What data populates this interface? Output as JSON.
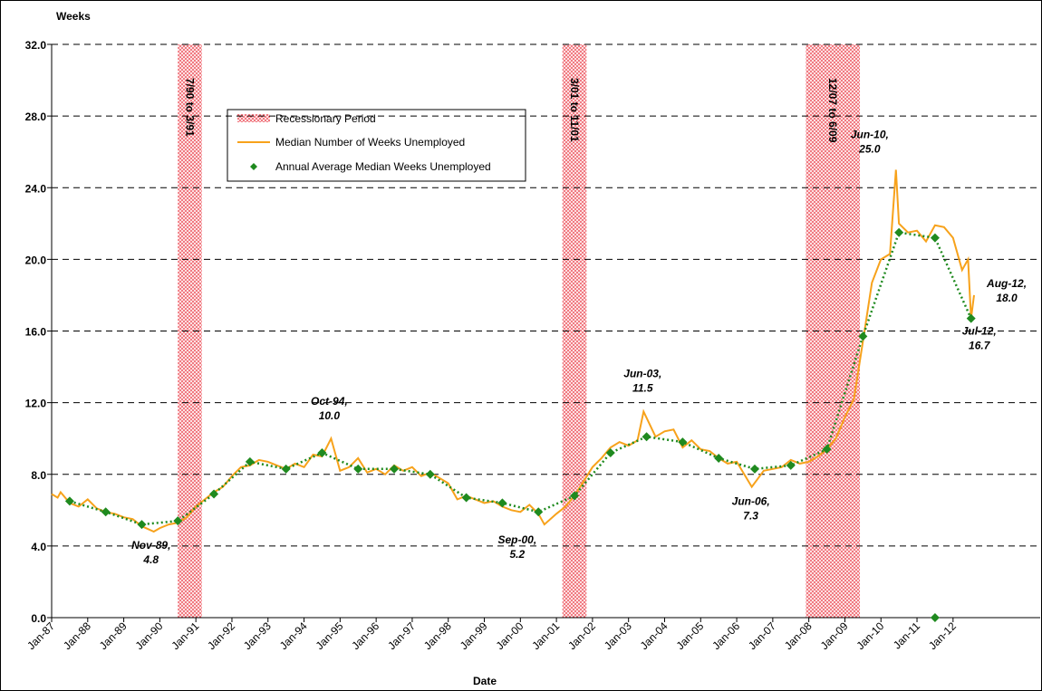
{
  "chart_data": {
    "type": "line",
    "y_axis_label": "Weeks",
    "x_axis_label": "Date",
    "ylim": [
      0,
      32
    ],
    "yticks": [
      {
        "value": 0,
        "label": "0.0"
      },
      {
        "value": 4,
        "label": "4.0"
      },
      {
        "value": 8,
        "label": "8.0"
      },
      {
        "value": 12,
        "label": "12.0"
      },
      {
        "value": 16,
        "label": "16.0"
      },
      {
        "value": 20,
        "label": "20.0"
      },
      {
        "value": 24,
        "label": "24.0"
      },
      {
        "value": 28,
        "label": "28.0"
      },
      {
        "value": 32,
        "label": "32.0"
      }
    ],
    "xlim": [
      "Jan-87",
      "Jun-14"
    ],
    "xticks": [
      "Jan-87",
      "Jan-88",
      "Jan-89",
      "Jan-90",
      "Jan-91",
      "Jan-92",
      "Jan-93",
      "Jan-94",
      "Jan-95",
      "Jan-96",
      "Jan-97",
      "Jan-98",
      "Jan-99",
      "Jan-00",
      "Jan-01",
      "Jan-02",
      "Jan-03",
      "Jan-04",
      "Jan-05",
      "Jan-06",
      "Jan-07",
      "Jan-08",
      "Jan-09",
      "Jan-10",
      "Jan-11",
      "Jan-12"
    ],
    "grid": true,
    "recessions": {
      "name": "Recessionary Period",
      "color": "#e8323c",
      "bands": [
        {
          "start": "Jul-90",
          "end": "Mar-91",
          "label": "7/90 to 3/91"
        },
        {
          "start": "Mar-01",
          "end": "Nov-01",
          "label": "3/01 to 11/01"
        },
        {
          "start": "Dec-07",
          "end": "Jun-09",
          "label": "12/07 to 6/09"
        }
      ]
    },
    "series": [
      {
        "name": "Median Number of Weeks Unemployed",
        "color": "#f7a21b",
        "x": [
          "Jan-87",
          "Mar-87",
          "Apr-87",
          "Jul-87",
          "Oct-87",
          "Jan-88",
          "Apr-88",
          "Jul-88",
          "Oct-88",
          "Jan-89",
          "Apr-89",
          "Jul-89",
          "Nov-89",
          "Jan-90",
          "Apr-90",
          "Jul-90",
          "Oct-90",
          "Jan-91",
          "Apr-91",
          "Jul-91",
          "Oct-91",
          "Jan-92",
          "Apr-92",
          "Jul-92",
          "Oct-92",
          "Jan-93",
          "Apr-93",
          "Jul-93",
          "Oct-93",
          "Jan-94",
          "Apr-94",
          "Jul-94",
          "Oct-94",
          "Jan-95",
          "Apr-95",
          "Jul-95",
          "Oct-95",
          "Jan-96",
          "Apr-96",
          "Jul-96",
          "Oct-96",
          "Jan-97",
          "Apr-97",
          "Jul-97",
          "Oct-97",
          "Jan-98",
          "Apr-98",
          "Jul-98",
          "Oct-98",
          "Jan-99",
          "Apr-99",
          "Jul-99",
          "Oct-99",
          "Jan-00",
          "Apr-00",
          "Jul-00",
          "Sep-00",
          "Jan-01",
          "Apr-01",
          "Jul-01",
          "Oct-01",
          "Jan-02",
          "Apr-02",
          "Jul-02",
          "Oct-02",
          "Jan-03",
          "Apr-03",
          "Jun-03",
          "Oct-03",
          "Jan-04",
          "Apr-04",
          "Jul-04",
          "Oct-04",
          "Jan-05",
          "Apr-05",
          "Jul-05",
          "Oct-05",
          "Jan-06",
          "Jun-06",
          "Oct-06",
          "Jan-07",
          "Apr-07",
          "Jul-07",
          "Oct-07",
          "Jan-08",
          "Apr-08",
          "Jul-08",
          "Oct-08",
          "Jan-09",
          "Apr-09",
          "Jul-09",
          "Oct-09",
          "Jan-10",
          "Apr-10",
          "Jun-10",
          "Jul-10",
          "Oct-10",
          "Jan-11",
          "Apr-11",
          "Jul-11",
          "Oct-11",
          "Jan-12",
          "Apr-12",
          "Jun-12",
          "Jul-12",
          "Aug-12"
        ],
        "values": [
          6.9,
          6.7,
          7.0,
          6.4,
          6.2,
          6.6,
          6.1,
          5.9,
          5.8,
          5.6,
          5.5,
          5.1,
          4.8,
          5.0,
          5.2,
          5.3,
          5.6,
          6.2,
          6.6,
          7.0,
          7.3,
          7.9,
          8.4,
          8.5,
          8.8,
          8.7,
          8.5,
          8.3,
          8.6,
          8.4,
          9.1,
          9.0,
          10.0,
          8.2,
          8.4,
          8.9,
          8.1,
          8.3,
          8.0,
          8.5,
          8.2,
          8.4,
          7.9,
          8.1,
          7.8,
          7.5,
          6.6,
          6.8,
          6.6,
          6.4,
          6.5,
          6.2,
          6.0,
          5.9,
          6.3,
          5.8,
          5.2,
          5.8,
          6.2,
          6.8,
          7.6,
          8.4,
          8.9,
          9.5,
          9.8,
          9.6,
          9.9,
          11.5,
          10.1,
          10.4,
          10.5,
          9.5,
          9.9,
          9.4,
          9.3,
          8.9,
          8.6,
          8.7,
          7.3,
          8.2,
          8.3,
          8.4,
          8.8,
          8.6,
          8.7,
          9.0,
          9.4,
          10.0,
          11.2,
          12.2,
          15.4,
          18.7,
          20.0,
          20.3,
          25.0,
          22.0,
          21.5,
          21.6,
          21.0,
          21.9,
          21.8,
          21.2,
          19.4,
          20.0,
          16.7,
          18.0
        ]
      },
      {
        "name": "Annual Average Median Weeks Unemployed",
        "color": "#1f8a1f",
        "x": [
          "Jul-87",
          "Jul-88",
          "Jul-89",
          "Jul-90",
          "Jul-91",
          "Jul-92",
          "Jul-93",
          "Jul-94",
          "Jul-95",
          "Jul-96",
          "Jul-97",
          "Jul-98",
          "Jul-99",
          "Jul-00",
          "Jul-01",
          "Jul-02",
          "Jul-03",
          "Jul-04",
          "Jul-05",
          "Jul-06",
          "Jul-07",
          "Jul-08",
          "Jul-09",
          "Jul-10",
          "Jul-11",
          "Jul-12"
        ],
        "values": [
          6.5,
          5.9,
          5.2,
          5.4,
          6.9,
          8.7,
          8.3,
          9.2,
          8.3,
          8.3,
          8.0,
          6.7,
          6.4,
          5.9,
          6.8,
          9.2,
          10.1,
          9.8,
          8.9,
          8.3,
          8.5,
          9.4,
          15.7,
          21.5,
          21.2,
          16.7
        ]
      }
    ],
    "extra_point": {
      "x": "Jul-11",
      "value": 0
    },
    "annotations": [
      {
        "x": "Nov-89",
        "value": 4.8,
        "label": "Nov-89,",
        "value_label": "4.8"
      },
      {
        "x": "Oct-94",
        "value": 10.0,
        "label": "Oct-94,",
        "value_label": "10.0"
      },
      {
        "x": "Sep-00",
        "value": 5.2,
        "label": "Sep-00,",
        "value_label": "5.2"
      },
      {
        "x": "Jun-03",
        "value": 11.5,
        "label": "Jun-03,",
        "value_label": "11.5"
      },
      {
        "x": "Jun-06",
        "value": 7.3,
        "label": "Jun-06,",
        "value_label": "7.3"
      },
      {
        "x": "Jun-10",
        "value": 25.0,
        "label": "Jun-10,",
        "value_label": "25.0"
      },
      {
        "x": "Jul-12",
        "value": 16.7,
        "label": "Jul-12,",
        "value_label": "16.7"
      },
      {
        "x": "Aug-12",
        "value": 18.0,
        "label": "Aug-12,",
        "value_label": "18.0"
      }
    ]
  }
}
